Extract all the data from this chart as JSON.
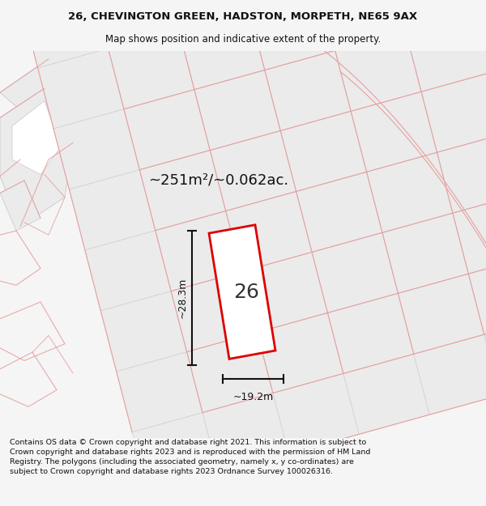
{
  "title_line1": "26, CHEVINGTON GREEN, HADSTON, MORPETH, NE65 9AX",
  "title_line2": "Map shows position and indicative extent of the property.",
  "area_text": "~251m²/~0.062ac.",
  "width_label": "~19.2m",
  "height_label": "~28.3m",
  "number_label": "26",
  "footer_text": "Contains OS data © Crown copyright and database right 2021. This information is subject to Crown copyright and database rights 2023 and is reproduced with the permission of HM Land Registry. The polygons (including the associated geometry, namely x, y co-ordinates) are subject to Crown copyright and database rights 2023 Ordnance Survey 100026316.",
  "bg_color": "#f5f5f5",
  "map_bg": "#ffffff",
  "plot_fill": "#ffffff",
  "plot_edge": "#dd0000",
  "dim_color": "#111111",
  "footer_color": "#111111",
  "title_color": "#111111",
  "building_fill": "#ebebeb",
  "building_edge": "#c8c8c8",
  "pink_line": "#e8a0a0",
  "figsize": [
    6.0,
    6.25
  ],
  "dpi": 100,
  "title_fontsize": 9.5,
  "subtitle_fontsize": 8.5,
  "area_fontsize": 13,
  "number_fontsize": 18,
  "dim_fontsize": 9,
  "footer_fontsize": 6.8
}
